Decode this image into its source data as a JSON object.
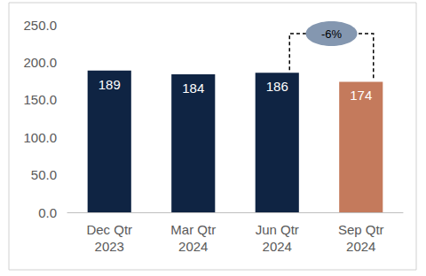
{
  "chart_data": {
    "type": "bar",
    "categories": [
      "Dec Qtr\n2023",
      "Mar Qtr\n2024",
      "Jun Qtr\n2024",
      "Sep Qtr\n2024"
    ],
    "values": [
      189,
      184,
      186,
      174
    ],
    "colors": [
      "#0f2443",
      "#0f2443",
      "#0f2443",
      "#c47a5c"
    ],
    "ylim": [
      0,
      250
    ],
    "yticks": [
      {
        "value": 0,
        "label": "0.0"
      },
      {
        "value": 50,
        "label": "50.0"
      },
      {
        "value": 100,
        "label": "100.0"
      },
      {
        "value": 150,
        "label": "150.0"
      },
      {
        "value": 200,
        "label": "200.0"
      },
      {
        "value": 250,
        "label": "250.0"
      }
    ],
    "grid": false,
    "data_labels": true,
    "annotations": [
      {
        "text": "-6%",
        "from": "Jun Qtr\n2024",
        "to": "Sep Qtr\n2024"
      }
    ]
  }
}
